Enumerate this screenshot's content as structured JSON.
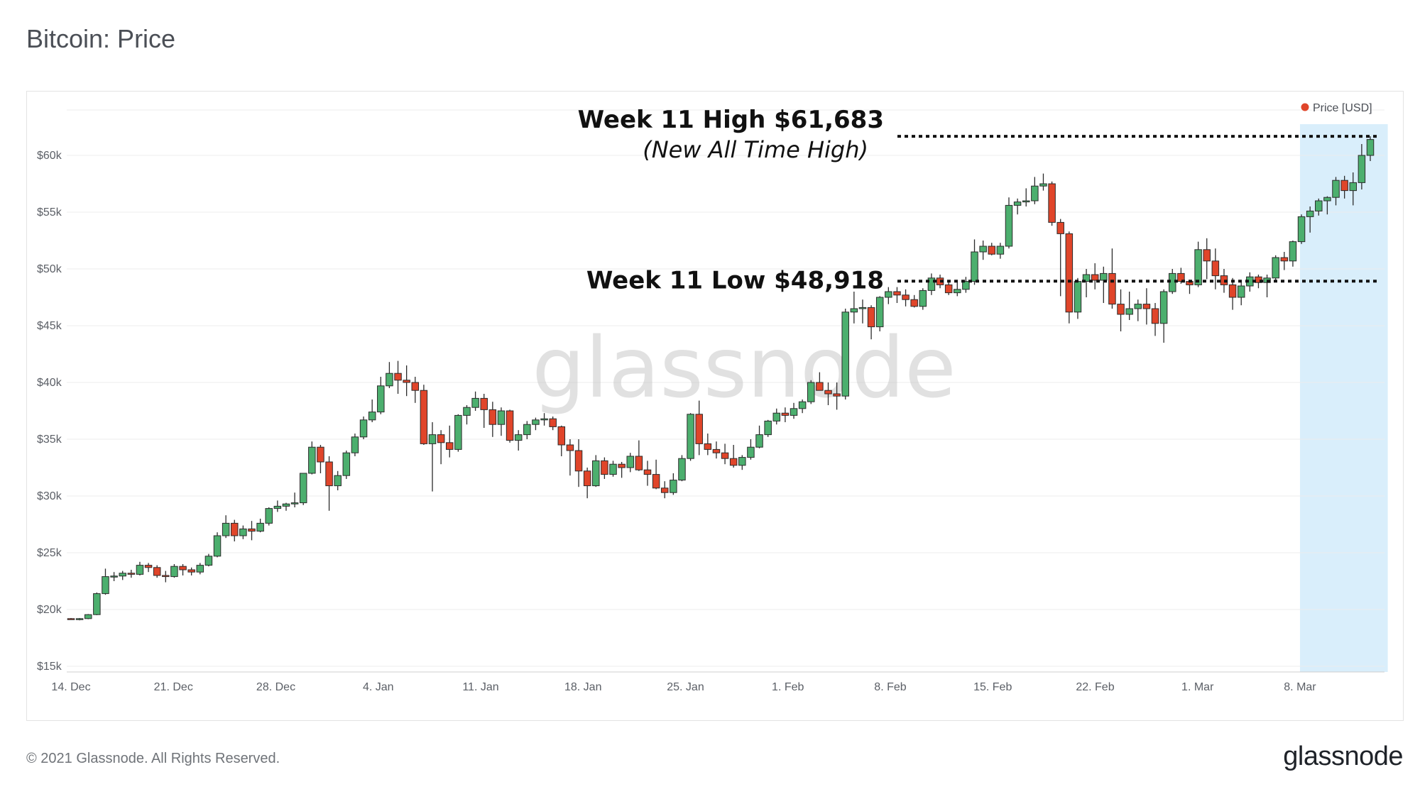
{
  "header": {
    "title": "Bitcoin: Price"
  },
  "footer": {
    "copyright": "© 2021 Glassnode. All Rights Reserved.",
    "logo": "glassnode"
  },
  "watermark": "glassnode",
  "colors": {
    "up": "#4caf6e",
    "down": "#e0452a",
    "grid": "#ececec",
    "highlight": "#d9eefb",
    "legend_dot": "#e0452a"
  },
  "chart_data": {
    "type": "candlestick",
    "title": "Bitcoin: Price",
    "legend": {
      "label": "Price [USD]",
      "placement": "top-right"
    },
    "y_ticks": [
      {
        "value": 15000,
        "label": "$15k"
      },
      {
        "value": 20000,
        "label": "$20k"
      },
      {
        "value": 25000,
        "label": "$25k"
      },
      {
        "value": 30000,
        "label": "$30k"
      },
      {
        "value": 35000,
        "label": "$35k"
      },
      {
        "value": 40000,
        "label": "$40k"
      },
      {
        "value": 45000,
        "label": "$45k"
      },
      {
        "value": 50000,
        "label": "$50k"
      },
      {
        "value": 55000,
        "label": "$55k"
      },
      {
        "value": 60000,
        "label": "$60k"
      }
    ],
    "ylim": [
      14500,
      64000
    ],
    "x_start": "2020-12-14",
    "x_end": "2021-03-13",
    "x_ticks": [
      {
        "date": "2020-12-14",
        "label": "14. Dec"
      },
      {
        "date": "2020-12-21",
        "label": "21. Dec"
      },
      {
        "date": "2020-12-28",
        "label": "28. Dec"
      },
      {
        "date": "2021-01-04",
        "label": "4. Jan"
      },
      {
        "date": "2021-01-11",
        "label": "11. Jan"
      },
      {
        "date": "2021-01-18",
        "label": "18. Jan"
      },
      {
        "date": "2021-01-25",
        "label": "25. Jan"
      },
      {
        "date": "2021-02-01",
        "label": "1. Feb"
      },
      {
        "date": "2021-02-08",
        "label": "8. Feb"
      },
      {
        "date": "2021-02-15",
        "label": "15. Feb"
      },
      {
        "date": "2021-02-22",
        "label": "22. Feb"
      },
      {
        "date": "2021-03-01",
        "label": "1. Mar"
      },
      {
        "date": "2021-03-08",
        "label": "8. Mar"
      }
    ],
    "highlight": {
      "from": "2021-03-08",
      "to": "2021-03-14"
    },
    "reference_lines": [
      {
        "value": 61683,
        "label": "Week 11 High $61,683",
        "sublabel": "(New All Time High)"
      },
      {
        "value": 48918,
        "label": "Week 11 Low $48,918",
        "sublabel": ""
      }
    ],
    "candle_days": 2,
    "candles": [
      [
        19200,
        19250,
        19100,
        19150
      ],
      [
        19150,
        19250,
        19050,
        19200
      ],
      [
        19200,
        19600,
        19150,
        19550
      ],
      [
        19550,
        21500,
        19500,
        21400
      ],
      [
        21400,
        23600,
        21300,
        22900
      ],
      [
        22900,
        23300,
        22500,
        22950
      ],
      [
        22950,
        23400,
        22600,
        23200
      ],
      [
        23200,
        23500,
        22800,
        23100
      ],
      [
        23100,
        24200,
        23000,
        23900
      ],
      [
        23900,
        24100,
        23300,
        23700
      ],
      [
        23700,
        23900,
        22800,
        23000
      ],
      [
        23000,
        23400,
        22400,
        22900
      ],
      [
        22900,
        24000,
        22800,
        23800
      ],
      [
        23800,
        24000,
        23000,
        23500
      ],
      [
        23500,
        23700,
        23000,
        23300
      ],
      [
        23300,
        24100,
        23100,
        23900
      ],
      [
        23900,
        24900,
        23800,
        24700
      ],
      [
        24700,
        26800,
        24600,
        26500
      ],
      [
        26500,
        28300,
        26300,
        27600
      ],
      [
        27600,
        27900,
        26000,
        26500
      ],
      [
        26500,
        27400,
        26200,
        27100
      ],
      [
        27100,
        27800,
        26100,
        26900
      ],
      [
        26900,
        28000,
        26800,
        27600
      ],
      [
        27600,
        29000,
        27400,
        28900
      ],
      [
        28900,
        29600,
        28600,
        29100
      ],
      [
        29100,
        29400,
        28700,
        29300
      ],
      [
        29300,
        30300,
        29000,
        29400
      ],
      [
        29400,
        32000,
        29200,
        32000
      ],
      [
        32000,
        34800,
        31900,
        34300
      ],
      [
        34300,
        34500,
        32000,
        33000
      ],
      [
        33000,
        33500,
        28700,
        30900
      ],
      [
        30900,
        32200,
        30500,
        31800
      ],
      [
        31800,
        34000,
        31500,
        33800
      ],
      [
        33800,
        35500,
        33500,
        35200
      ],
      [
        35200,
        37000,
        35000,
        36700
      ],
      [
        36700,
        38500,
        36500,
        37400
      ],
      [
        37400,
        40500,
        37200,
        39700
      ],
      [
        39700,
        41800,
        39500,
        40800
      ],
      [
        40800,
        41900,
        39000,
        40200
      ],
      [
        40200,
        41500,
        38800,
        40000
      ],
      [
        40000,
        40500,
        38200,
        39300
      ],
      [
        39300,
        39800,
        34500,
        34600
      ],
      [
        34600,
        36500,
        30400,
        35400
      ],
      [
        35400,
        35800,
        32800,
        34700
      ],
      [
        34700,
        36200,
        33400,
        34100
      ],
      [
        34100,
        37200,
        33900,
        37100
      ],
      [
        37100,
        38000,
        36300,
        37800
      ],
      [
        37800,
        39200,
        37500,
        38600
      ],
      [
        38600,
        39000,
        36000,
        37600
      ],
      [
        37600,
        38300,
        35200,
        36300
      ],
      [
        36300,
        37800,
        35300,
        37500
      ],
      [
        37500,
        37600,
        34700,
        34900
      ],
      [
        34900,
        35800,
        34000,
        35400
      ],
      [
        35400,
        36600,
        35000,
        36300
      ],
      [
        36300,
        36900,
        35800,
        36700
      ],
      [
        36700,
        37300,
        36200,
        36800
      ],
      [
        36800,
        37000,
        35800,
        36100
      ],
      [
        36100,
        36200,
        33500,
        34500
      ],
      [
        34500,
        35000,
        31800,
        34000
      ],
      [
        34000,
        35000,
        30800,
        32200
      ],
      [
        32200,
        32500,
        29800,
        30900
      ],
      [
        30900,
        33600,
        30800,
        33100
      ],
      [
        33100,
        33400,
        31500,
        31900
      ],
      [
        31900,
        33100,
        31700,
        32800
      ],
      [
        32800,
        33000,
        31600,
        32500
      ],
      [
        32500,
        33800,
        32100,
        33500
      ],
      [
        33500,
        34900,
        32200,
        32300
      ],
      [
        32300,
        33100,
        30900,
        31900
      ],
      [
        31900,
        33200,
        30600,
        30700
      ],
      [
        30700,
        31300,
        29800,
        30300
      ],
      [
        30300,
        32000,
        30100,
        31400
      ],
      [
        31400,
        33600,
        31300,
        33300
      ],
      [
        33300,
        37300,
        33100,
        37200
      ],
      [
        37200,
        38400,
        33600,
        34600
      ],
      [
        34600,
        35500,
        33600,
        34100
      ],
      [
        34100,
        34800,
        33300,
        33800
      ],
      [
        33800,
        34600,
        32800,
        33300
      ],
      [
        33300,
        34500,
        32500,
        32700
      ],
      [
        32700,
        33600,
        32300,
        33400
      ],
      [
        33400,
        35000,
        33200,
        34300
      ],
      [
        34300,
        36200,
        34200,
        35400
      ],
      [
        35400,
        36700,
        35200,
        36600
      ],
      [
        36600,
        37700,
        36300,
        37300
      ],
      [
        37300,
        37800,
        36500,
        37100
      ],
      [
        37100,
        38200,
        36800,
        37700
      ],
      [
        37700,
        38500,
        37300,
        38300
      ],
      [
        38300,
        40200,
        38100,
        40000
      ],
      [
        40000,
        40900,
        39600,
        39300
      ],
      [
        39300,
        40000,
        38000,
        39000
      ],
      [
        39000,
        40000,
        37600,
        38800
      ],
      [
        38800,
        46500,
        38500,
        46200
      ],
      [
        46200,
        48000,
        45200,
        46500
      ],
      [
        46500,
        47300,
        45200,
        46600
      ],
      [
        46600,
        46800,
        43800,
        44900
      ],
      [
        44900,
        47600,
        44500,
        47500
      ],
      [
        47500,
        48400,
        46900,
        48000
      ],
      [
        48000,
        48400,
        47000,
        47700
      ],
      [
        47700,
        48200,
        46700,
        47300
      ],
      [
        47300,
        47700,
        46600,
        46700
      ],
      [
        46700,
        48300,
        46400,
        48100
      ],
      [
        48100,
        49600,
        47700,
        49200
      ],
      [
        49200,
        49500,
        48300,
        48600
      ],
      [
        48600,
        49000,
        47700,
        47900
      ],
      [
        47900,
        49000,
        47600,
        48200
      ],
      [
        48200,
        49300,
        47900,
        48900
      ],
      [
        48900,
        52600,
        48600,
        51500
      ],
      [
        51500,
        52500,
        50800,
        52000
      ],
      [
        52000,
        52300,
        51200,
        51300
      ],
      [
        51300,
        52300,
        50900,
        52000
      ],
      [
        52000,
        56300,
        51800,
        55600
      ],
      [
        55600,
        56200,
        54800,
        55900
      ],
      [
        55900,
        57100,
        55500,
        56000
      ],
      [
        56000,
        58100,
        55700,
        57300
      ],
      [
        57300,
        58400,
        56900,
        57500
      ],
      [
        57500,
        57700,
        53800,
        54100
      ],
      [
        54100,
        54400,
        47600,
        53100
      ],
      [
        53100,
        53300,
        45200,
        46200
      ],
      [
        46200,
        49200,
        45600,
        48900
      ],
      [
        48900,
        50000,
        47500,
        49500
      ],
      [
        49500,
        50500,
        48200,
        49000
      ],
      [
        49000,
        50200,
        47000,
        49600
      ],
      [
        49600,
        51800,
        46500,
        46900
      ],
      [
        46900,
        48200,
        44500,
        46000
      ],
      [
        46000,
        48000,
        45500,
        46500
      ],
      [
        46500,
        47300,
        45400,
        46900
      ],
      [
        46900,
        48300,
        45100,
        46500
      ],
      [
        46500,
        47000,
        44100,
        45200
      ],
      [
        45200,
        48200,
        43500,
        48000
      ],
      [
        48000,
        50000,
        47800,
        49600
      ],
      [
        49600,
        50100,
        48700,
        48900
      ],
      [
        48900,
        49000,
        47800,
        48600
      ],
      [
        48600,
        52400,
        48400,
        51700
      ],
      [
        51700,
        52700,
        49100,
        50700
      ],
      [
        50700,
        51800,
        48200,
        49400
      ],
      [
        49400,
        50000,
        47900,
        48600
      ],
      [
        48600,
        49200,
        46400,
        47500
      ],
      [
        47500,
        49000,
        46800,
        48500
      ],
      [
        48500,
        49700,
        48000,
        49300
      ],
      [
        49300,
        49500,
        48300,
        48800
      ],
      [
        48800,
        49500,
        47500,
        49200
      ],
      [
        49200,
        51200,
        49000,
        51000
      ],
      [
        51000,
        51500,
        49900,
        50700
      ],
      [
        50700,
        52500,
        50200,
        52400
      ],
      [
        52400,
        54800,
        52200,
        54600
      ],
      [
        54600,
        55500,
        53200,
        55100
      ],
      [
        55100,
        56200,
        54700,
        56000
      ],
      [
        56000,
        56400,
        54800,
        56300
      ],
      [
        56300,
        58100,
        55600,
        57800
      ],
      [
        57800,
        58200,
        56200,
        56900
      ],
      [
        56900,
        58500,
        55600,
        57600
      ],
      [
        57600,
        61000,
        57000,
        60000
      ],
      [
        60000,
        61683,
        59500,
        61400
      ]
    ]
  }
}
